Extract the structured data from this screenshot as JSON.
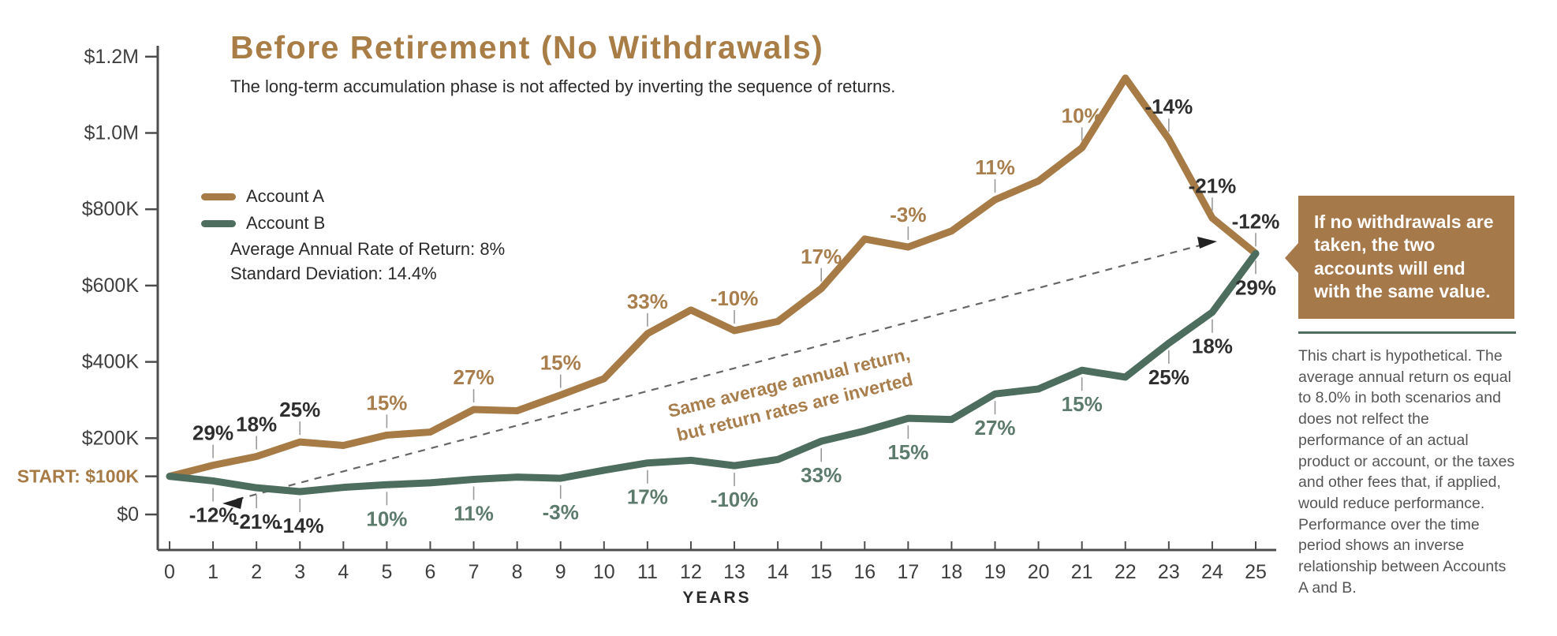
{
  "chart_data": {
    "type": "line",
    "title": "Before Retirement (No Withdrawals)",
    "subtitle": "The long-term accumulation phase is not affected by inverting the sequence of returns.",
    "stats": [
      "Average Annual Rate of Return: 8%",
      "Standard Deviation: 14.4%"
    ],
    "xlabel": "YEARS",
    "start_label": "START: $100K",
    "x_ticks": [
      0,
      1,
      2,
      3,
      4,
      5,
      6,
      7,
      8,
      9,
      10,
      11,
      12,
      13,
      14,
      15,
      16,
      17,
      18,
      19,
      20,
      21,
      22,
      23,
      24,
      25
    ],
    "y_ticks": [
      {
        "label": "$1.2M",
        "value": 1200
      },
      {
        "label": "$1.0M",
        "value": 1000
      },
      {
        "label": "$800K",
        "value": 800
      },
      {
        "label": "$600K",
        "value": 600
      },
      {
        "label": "$400K",
        "value": 400
      },
      {
        "label": "$200K",
        "value": 200
      },
      {
        "label": "START: $100K",
        "value": 100,
        "accent": true
      },
      {
        "label": "$0",
        "value": 0
      }
    ],
    "ylim": [
      0,
      1240
    ],
    "y_unit": "thousands of dollars",
    "grid": false,
    "legend_position": "top-left",
    "series": [
      {
        "name": "Account A",
        "color": "#a67b45",
        "label_color": "#a87e4c",
        "values": [
          100,
          129,
          152,
          190,
          181,
          208,
          216,
          275,
          272,
          313,
          356,
          474,
          536,
          482,
          506,
          592,
          722,
          701,
          743,
          825,
          874,
          961,
          1144,
          984,
          777,
          684
        ],
        "return_labels": [
          {
            "year": 1,
            "text": "29%",
            "emph": true
          },
          {
            "year": 2,
            "text": "18%",
            "emph": true
          },
          {
            "year": 3,
            "text": "25%",
            "emph": true
          },
          {
            "year": 5,
            "text": "15%"
          },
          {
            "year": 7,
            "text": "27%"
          },
          {
            "year": 9,
            "text": "15%"
          },
          {
            "year": 11,
            "text": "33%"
          },
          {
            "year": 13,
            "text": "-10%"
          },
          {
            "year": 15,
            "text": "17%"
          },
          {
            "year": 17,
            "text": "-3%"
          },
          {
            "year": 19,
            "text": "11%"
          },
          {
            "year": 21,
            "text": "10%"
          },
          {
            "year": 23,
            "text": "-14%",
            "emph": true
          },
          {
            "year": 24,
            "text": "-21%",
            "emph": true
          },
          {
            "year": 25,
            "text": "-12%",
            "emph": true
          }
        ]
      },
      {
        "name": "Account B",
        "color": "#4d6d5e",
        "label_color": "#5d7b6c",
        "values": [
          100,
          88,
          70,
          60,
          71,
          78,
          83,
          92,
          98,
          95,
          116,
          135,
          142,
          128,
          144,
          192,
          219,
          252,
          249,
          316,
          329,
          378,
          360,
          449,
          530,
          684
        ],
        "return_labels": [
          {
            "year": 1,
            "text": "-12%",
            "emph": true
          },
          {
            "year": 2,
            "text": "-21%",
            "emph": true
          },
          {
            "year": 3,
            "text": "-14%",
            "emph": true
          },
          {
            "year": 5,
            "text": "10%"
          },
          {
            "year": 7,
            "text": "11%"
          },
          {
            "year": 9,
            "text": "-3%"
          },
          {
            "year": 11,
            "text": "17%"
          },
          {
            "year": 13,
            "text": "-10%"
          },
          {
            "year": 15,
            "text": "33%"
          },
          {
            "year": 17,
            "text": "15%"
          },
          {
            "year": 19,
            "text": "27%"
          },
          {
            "year": 21,
            "text": "15%"
          },
          {
            "year": 23,
            "text": "25%",
            "emph": true
          },
          {
            "year": 24,
            "text": "18%",
            "emph": true
          },
          {
            "year": 25,
            "text": "29%",
            "emph": true
          }
        ]
      }
    ],
    "connector_annotation": {
      "line1": "Same average annual return,",
      "line2": "but return rates are inverted"
    }
  },
  "callout": {
    "text": "If no withdrawals are taken, the two accounts will end with the same value."
  },
  "disclaimer": "This chart is hypothetical. The average annual return os equal to 8.0% in both scenarios and does not relfect the performance of an actual product or account, or the taxes and other fees that, if applied, would reduce performance. Performance over the time period shows an inverse relationship between Accounts A and B.",
  "colors": {
    "accent_brown": "#a67b45",
    "accent_green": "#4d6d5e",
    "emphasis_text": "#2e2e2e",
    "axis": "#4d4d4d",
    "dashed_connector": "#666666",
    "callout_bg": "#a5794a",
    "disclaimer_text": "#565656"
  }
}
